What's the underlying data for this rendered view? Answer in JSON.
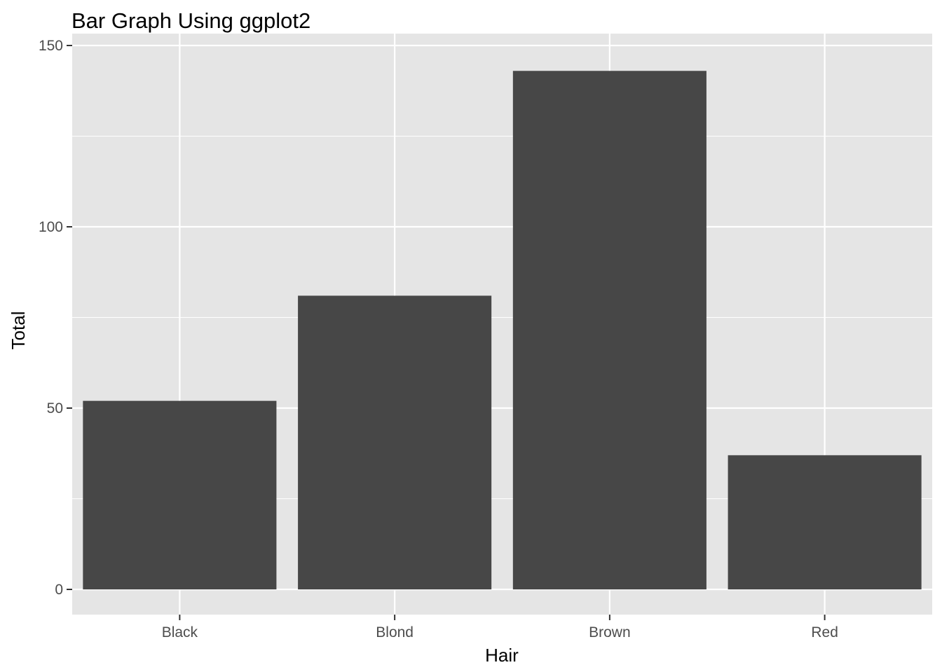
{
  "chart_data": {
    "type": "bar",
    "title": "Bar Graph Using ggplot2",
    "xlabel": "Hair",
    "ylabel": "Total",
    "categories": [
      "Black",
      "Blond",
      "Brown",
      "Red"
    ],
    "values": [
      52,
      81,
      143,
      37
    ],
    "ylim": [
      0,
      150
    ],
    "yticks": [
      0,
      50,
      100,
      150
    ],
    "ytick_labels": [
      "0",
      "50",
      "100",
      "150"
    ],
    "grid": true,
    "legend": "none",
    "colors": {
      "panel_background": "#e5e5e5",
      "grid_line": "#ffffff",
      "bar_fill": "#474747",
      "tick_label": "#4d4d4d",
      "tick_mark": "#333333"
    }
  }
}
